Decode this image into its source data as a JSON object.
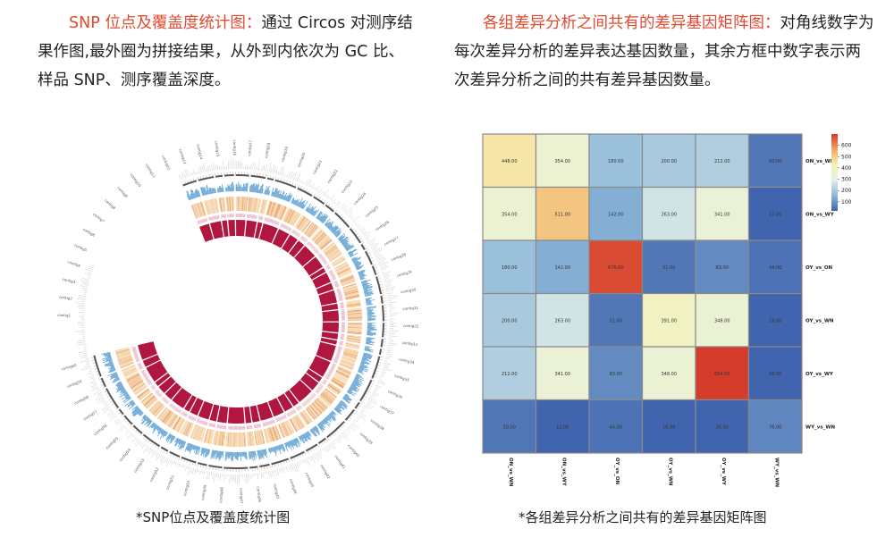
{
  "left_panel": {
    "title": "SNP 位点及覆盖度统计图：",
    "text": "通过 Circos 对测序结果作图,最外圈为拼接结果，从外到内依次为 GC 比、样品 SNP、测序覆盖深度。",
    "caption": "*SNP位点及覆盖度统计图"
  },
  "right_panel": {
    "title": "各组差异分析之间共有的差异基因矩阵图：",
    "text": "对角线数字为每次差异分析的差异表达基因数量，其余方框中数字表示两次差异分析之间的共有差异基因数量。",
    "caption": "*各组差异分析之间共有的差异基因矩阵图"
  },
  "chart_data": {
    "type": "heatmap",
    "row_labels": [
      "ON_vs_WN",
      "ON_vs_WY",
      "OY_vs_ON",
      "OY_vs_WN",
      "OY_vs_WY",
      "WY_vs_WN"
    ],
    "col_labels": [
      "ON_vs_WN",
      "ON_vs_WY",
      "OY_vs_ON",
      "OY_vs_WN",
      "OY_vs_WY",
      "WY_vs_WN"
    ],
    "values": [
      [
        448,
        354,
        180,
        200,
        212,
        50
      ],
      [
        354,
        511,
        142,
        263,
        341,
        12
      ],
      [
        180,
        142,
        676,
        51,
        83,
        44
      ],
      [
        200,
        263,
        51,
        391,
        348,
        16
      ],
      [
        212,
        341,
        83,
        348,
        694,
        16
      ],
      [
        50,
        12,
        44,
        16,
        16,
        76
      ]
    ],
    "cell_labels": [
      [
        "448.00",
        "354.00",
        "180.00",
        "200.00",
        "212.00",
        "50.00"
      ],
      [
        "354.00",
        "511.00",
        "142.00",
        "263.00",
        "341.00",
        "12.00"
      ],
      [
        "180.00",
        "142.00",
        "676.00",
        "51.00",
        "83.00",
        "44.00"
      ],
      [
        "200.00",
        "263.00",
        "51.00",
        "391.00",
        "348.00",
        "16.00"
      ],
      [
        "212.00",
        "341.00",
        "83.00",
        "348.00",
        "694.00",
        "16.00"
      ],
      [
        "50.00",
        "12.00",
        "44.00",
        "16.00",
        "16.00",
        "76.00"
      ]
    ],
    "colorbar_ticks": [
      "600",
      "500",
      "400",
      "300",
      "200",
      "100"
    ],
    "colorbar_range": [
      20,
      700
    ],
    "colorbar_colors": [
      "#4064ad",
      "#8cb6d8",
      "#e3f1e9",
      "#f6f2b4",
      "#f3a761",
      "#d5372a"
    ]
  },
  "circos": {
    "ring_colors": {
      "gc": "#5b9fd2",
      "snp_light": "#f2c07e",
      "snp_dark": "#e58a42",
      "depth_outline": "#e3a3b4",
      "depth_fill": "#b0163f"
    },
    "contig_labels": [
      "contig1",
      "contig2",
      "contig3",
      "contig4",
      "contig5",
      "contig6",
      "contig7",
      "contig8",
      "contig9",
      "contig10",
      "contig11",
      "contig12",
      "contig13",
      "contig14",
      "contig15",
      "contig16",
      "contig17",
      "contig18",
      "contig19",
      "contig20",
      "contig21",
      "contig22",
      "contig23",
      "contig24",
      "contig25",
      "contig26",
      "contig27",
      "contig28",
      "contig29",
      "contig30",
      "contig31",
      "contig32",
      "contig33",
      "contig34",
      "contig35",
      "contig36",
      "contig37",
      "contig38",
      "contig39",
      "contig40",
      "contig41",
      "contig42",
      "contig43",
      "contig44",
      "contig45",
      "contig46",
      "contig47",
      "contig48",
      "contig49",
      "contig50",
      "contig51",
      "contig52",
      "contig53",
      "contig54",
      "contig55",
      "contig56",
      "contig57",
      "contig58",
      "contig59",
      "contig60"
    ]
  }
}
